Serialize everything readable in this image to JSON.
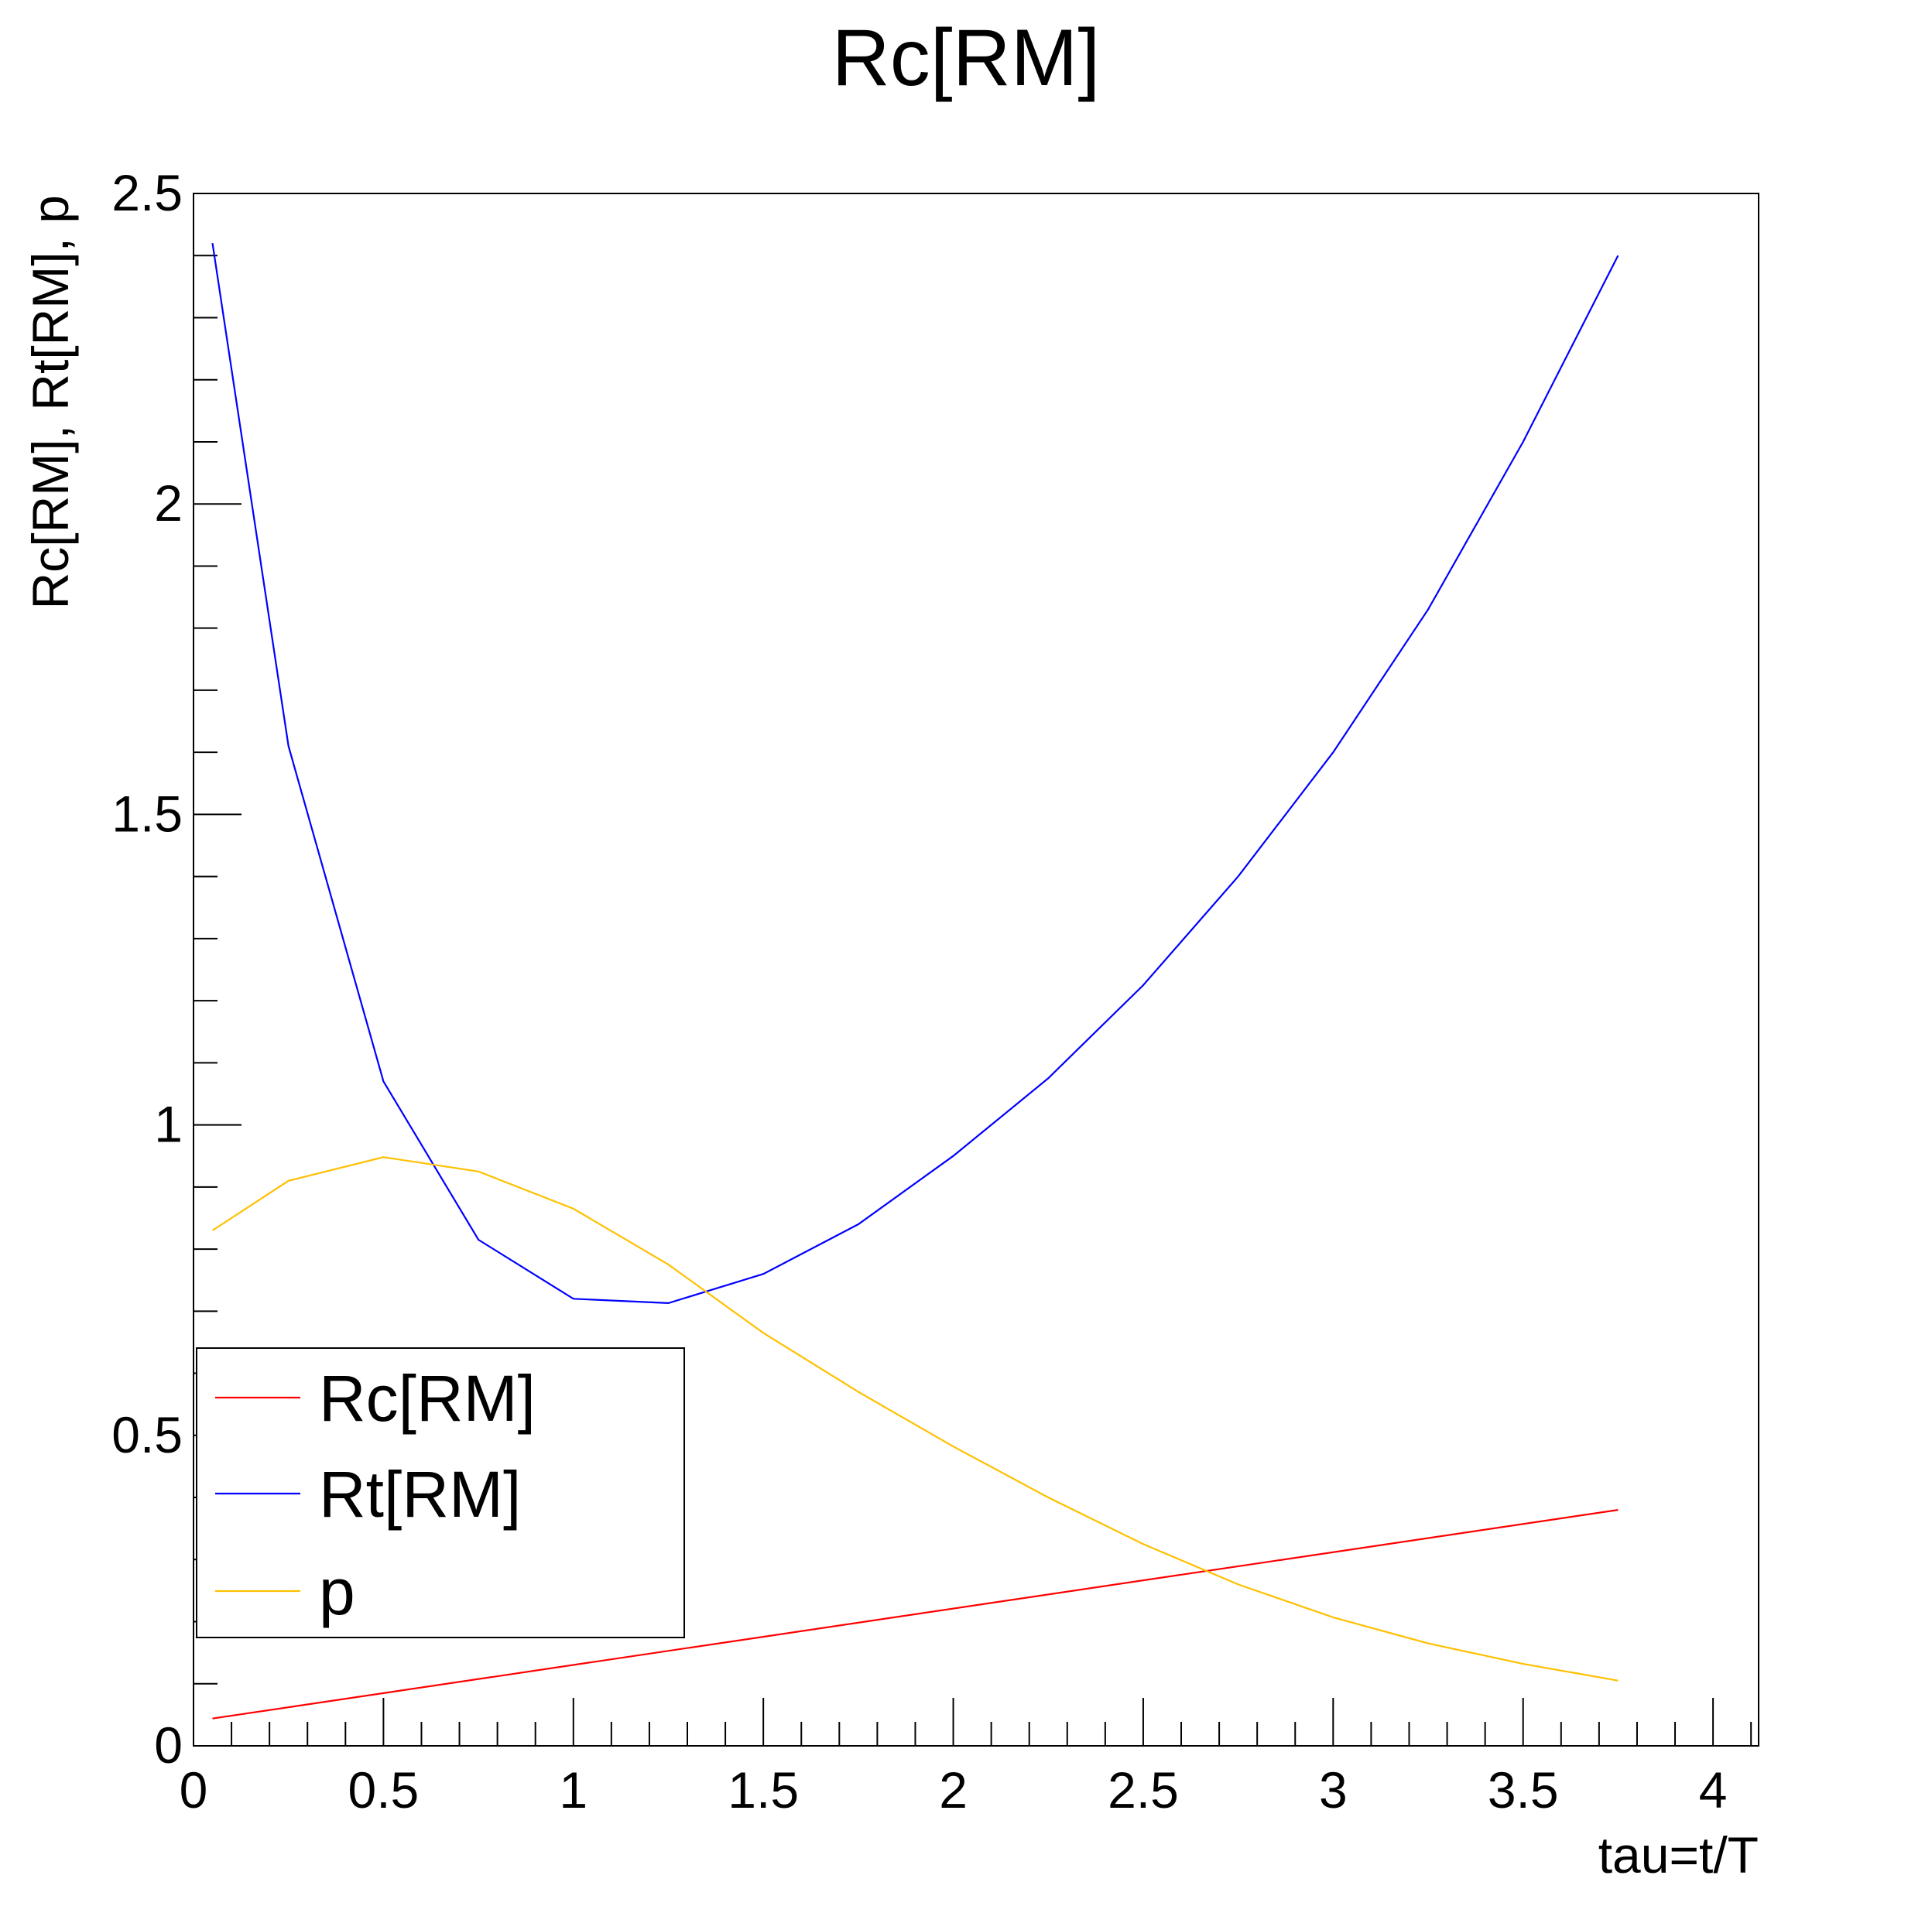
{
  "chart_data": {
    "type": "line",
    "title": "Rc[RM]",
    "xlabel": "tau=t/T",
    "ylabel": "Rc[RM], Rt[RM], p",
    "xlim": [
      0,
      4.12
    ],
    "ylim": [
      0,
      2.5
    ],
    "x_ticks": [
      "0",
      "0.5",
      "1",
      "1.5",
      "2",
      "2.5",
      "3",
      "3.5",
      "4"
    ],
    "y_ticks": [
      "0",
      "0.5",
      "1",
      "1.5",
      "2",
      "2.5"
    ],
    "grid": false,
    "legend_position": "lower-left",
    "series": [
      {
        "name": "Rc[RM]",
        "color": "#ff0000",
        "x": [
          0.05,
          3.75
        ],
        "y": [
          0.044,
          0.38
        ]
      },
      {
        "name": "Rt[RM]",
        "color": "#0000ff",
        "x": [
          0.05,
          0.25,
          0.5,
          0.75,
          1.0,
          1.25,
          1.5,
          1.75,
          2.0,
          2.25,
          2.5,
          2.75,
          3.0,
          3.25,
          3.5,
          3.75
        ],
        "y": [
          2.42,
          1.61,
          1.07,
          0.815,
          0.72,
          0.713,
          0.76,
          0.84,
          0.95,
          1.075,
          1.225,
          1.4,
          1.6,
          1.83,
          2.1,
          2.4
        ]
      },
      {
        "name": "p",
        "color": "#ffc000",
        "x": [
          0.05,
          0.25,
          0.5,
          0.75,
          1.0,
          1.25,
          1.5,
          1.75,
          2.0,
          2.25,
          2.5,
          2.75,
          3.0,
          3.25,
          3.5,
          3.75
        ],
        "y": [
          0.83,
          0.91,
          0.948,
          0.925,
          0.865,
          0.775,
          0.665,
          0.57,
          0.482,
          0.4,
          0.325,
          0.26,
          0.207,
          0.165,
          0.132,
          0.105
        ]
      }
    ]
  }
}
